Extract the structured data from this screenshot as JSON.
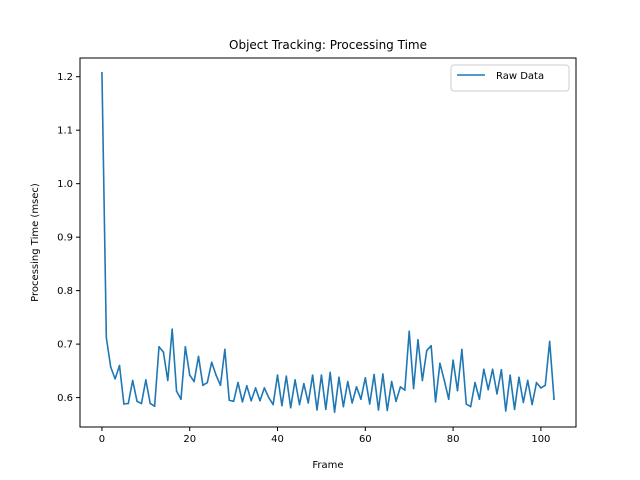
{
  "chart_data": {
    "type": "line",
    "title": "Object Tracking: Processing Time",
    "xlabel": "Frame",
    "ylabel": "Processing Time (msec)",
    "xlim": [
      -5,
      108
    ],
    "ylim": [
      0.545,
      1.235
    ],
    "xticks": [
      0,
      20,
      40,
      60,
      80,
      100
    ],
    "yticks": [
      0.6,
      0.7,
      0.8,
      0.9,
      1.0,
      1.1,
      1.2
    ],
    "ytick_labels": [
      "0.6",
      "0.7",
      "0.8",
      "0.9",
      "1.0",
      "1.1",
      "1.2"
    ],
    "grid": false,
    "legend_position": "upper right",
    "series": [
      {
        "name": "Raw Data",
        "color": "#1f77b4",
        "x": [
          0,
          1,
          2,
          3,
          4,
          5,
          6,
          7,
          8,
          9,
          10,
          11,
          12,
          13,
          14,
          15,
          16,
          17,
          18,
          19,
          20,
          21,
          22,
          23,
          24,
          25,
          26,
          27,
          28,
          29,
          30,
          31,
          32,
          33,
          34,
          35,
          36,
          37,
          38,
          39,
          40,
          41,
          42,
          43,
          44,
          45,
          46,
          47,
          48,
          49,
          50,
          51,
          52,
          53,
          54,
          55,
          56,
          57,
          58,
          59,
          60,
          61,
          62,
          63,
          64,
          65,
          66,
          67,
          68,
          69,
          70,
          71,
          72,
          73,
          74,
          75,
          76,
          77,
          78,
          79,
          80,
          81,
          82,
          83,
          84,
          85,
          86,
          87,
          88,
          89,
          90,
          91,
          92,
          93,
          94,
          95,
          96,
          97,
          98,
          99,
          100,
          101,
          102,
          103
        ],
        "values": [
          1.207,
          0.712,
          0.657,
          0.635,
          0.66,
          0.588,
          0.589,
          0.632,
          0.593,
          0.589,
          0.633,
          0.589,
          0.584,
          0.695,
          0.685,
          0.632,
          0.728,
          0.612,
          0.597,
          0.695,
          0.642,
          0.63,
          0.677,
          0.623,
          0.628,
          0.666,
          0.642,
          0.623,
          0.69,
          0.595,
          0.593,
          0.628,
          0.592,
          0.622,
          0.594,
          0.618,
          0.594,
          0.618,
          0.6,
          0.587,
          0.642,
          0.585,
          0.64,
          0.581,
          0.633,
          0.587,
          0.626,
          0.59,
          0.642,
          0.577,
          0.642,
          0.578,
          0.647,
          0.573,
          0.638,
          0.583,
          0.63,
          0.59,
          0.62,
          0.597,
          0.637,
          0.588,
          0.643,
          0.577,
          0.644,
          0.576,
          0.63,
          0.593,
          0.62,
          0.614,
          0.724,
          0.617,
          0.708,
          0.632,
          0.688,
          0.697,
          0.592,
          0.664,
          0.632,
          0.597,
          0.67,
          0.613,
          0.69,
          0.588,
          0.583,
          0.628,
          0.597,
          0.653,
          0.615,
          0.653,
          0.607,
          0.652,
          0.575,
          0.642,
          0.578,
          0.638,
          0.591,
          0.632,
          0.587,
          0.628,
          0.618,
          0.623,
          0.705,
          0.597
        ]
      }
    ]
  }
}
